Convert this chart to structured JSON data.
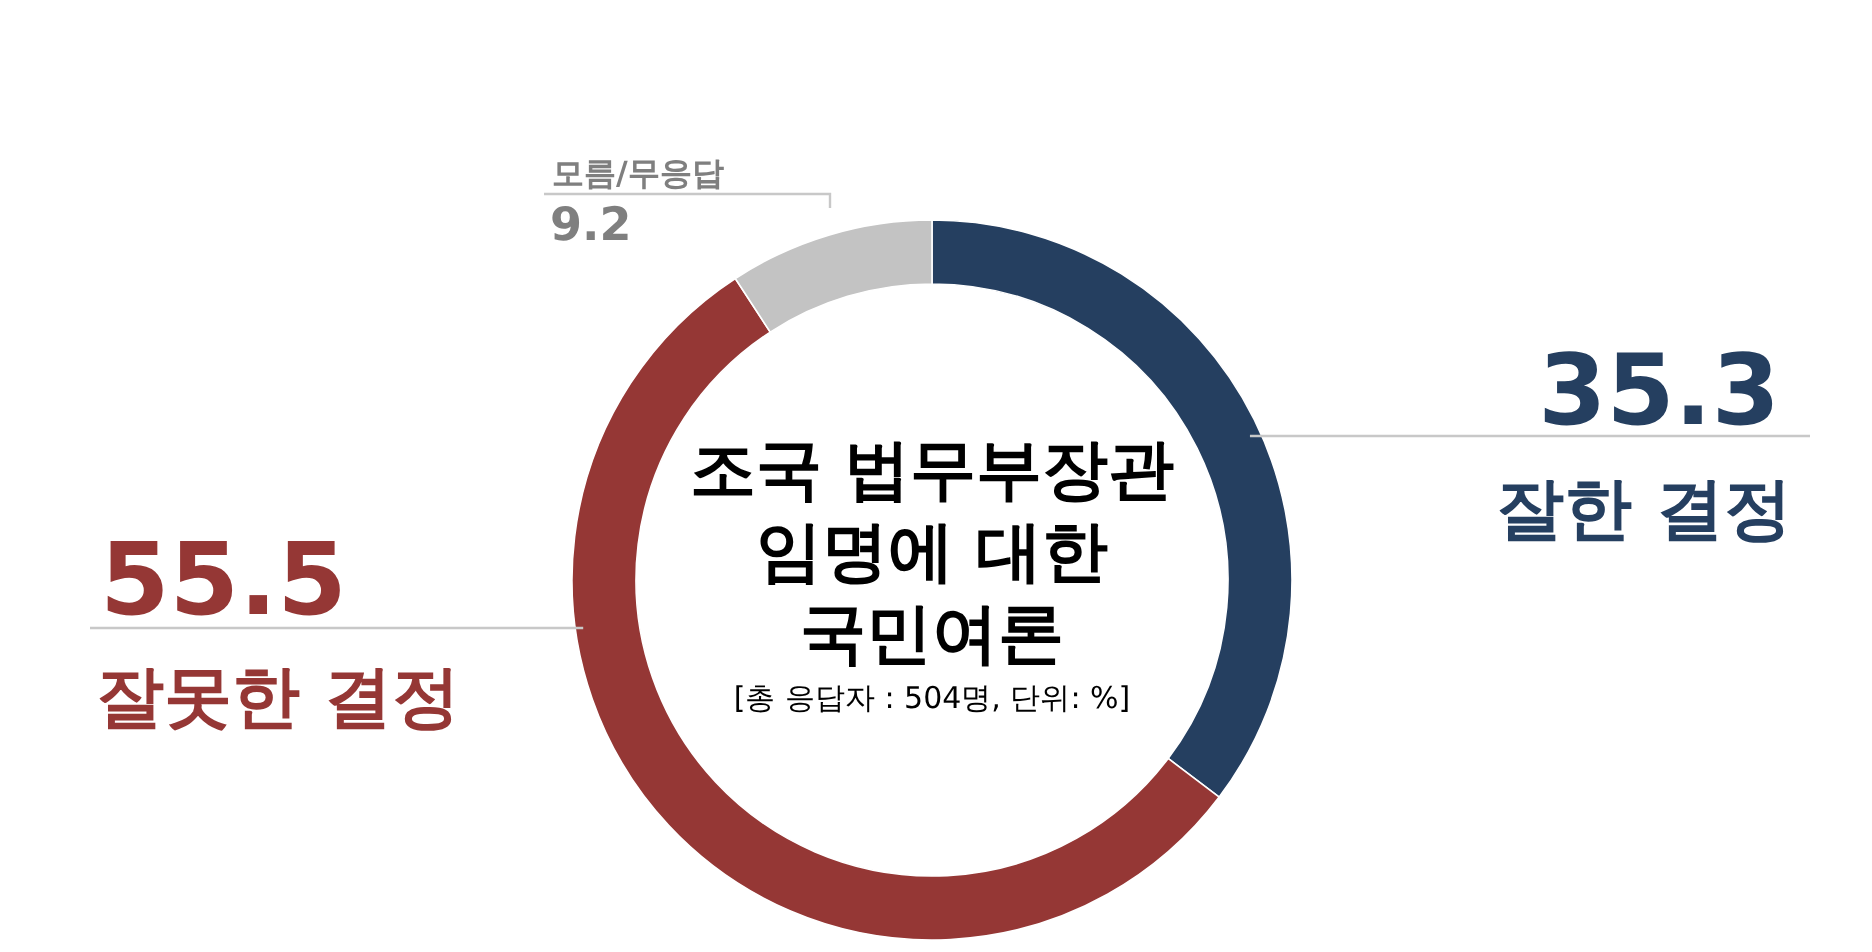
{
  "chart_data": {
    "type": "donut",
    "title": "조국 법무부장관\n임명에 대한\n국민여론",
    "subtitle": "[총 응답자 : 504명, 단위: %]",
    "categories": [
      "잘한 결정",
      "잘못한 결정",
      "모름/무응답"
    ],
    "values": [
      35.3,
      55.5,
      9.2
    ],
    "colors": [
      "#253f60",
      "#953735",
      "#c3c3c3"
    ],
    "data_labels": true
  }
}
